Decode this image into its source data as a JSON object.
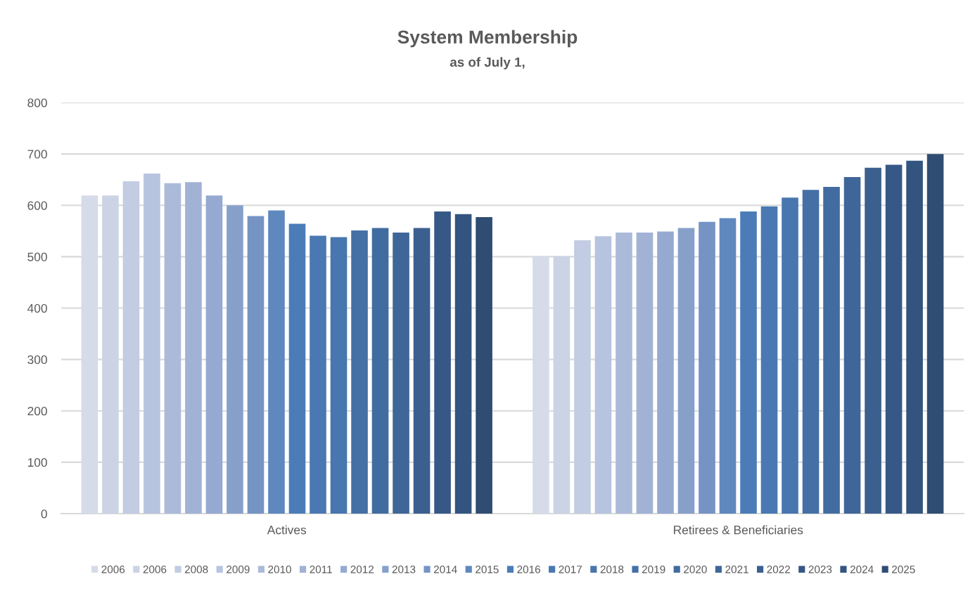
{
  "chart_data": {
    "type": "bar",
    "title": "System Membership",
    "subtitle": "as of July 1,",
    "categories": [
      "Actives",
      "Retirees & Beneficiaries"
    ],
    "series": [
      {
        "name": "2006",
        "color": "#d5dbe8",
        "values": [
          619,
          501
        ]
      },
      {
        "name": "2006",
        "color": "#cbd3e4",
        "values": [
          619,
          501
        ]
      },
      {
        "name": "2008",
        "color": "#c2cce2",
        "values": [
          647,
          532
        ]
      },
      {
        "name": "2009",
        "color": "#b7c4df",
        "values": [
          662,
          540
        ]
      },
      {
        "name": "2010",
        "color": "#abbad9",
        "values": [
          643,
          547
        ]
      },
      {
        "name": "2011",
        "color": "#a1b2d5",
        "values": [
          645,
          547
        ]
      },
      {
        "name": "2012",
        "color": "#95a9d1",
        "values": [
          619,
          549
        ]
      },
      {
        "name": "2013",
        "color": "#86a0ca",
        "values": [
          600,
          556
        ]
      },
      {
        "name": "2014",
        "color": "#7594c4",
        "values": [
          579,
          568
        ]
      },
      {
        "name": "2015",
        "color": "#5f88bf",
        "values": [
          590,
          575
        ]
      },
      {
        "name": "2016",
        "color": "#4b7cb8",
        "values": [
          564,
          588
        ]
      },
      {
        "name": "2017",
        "color": "#4a78b2",
        "values": [
          541,
          598
        ]
      },
      {
        "name": "2018",
        "color": "#4876ae",
        "values": [
          538,
          615
        ]
      },
      {
        "name": "2019",
        "color": "#4570a6",
        "values": [
          551,
          630
        ]
      },
      {
        "name": "2020",
        "color": "#416ca0",
        "values": [
          556,
          636
        ]
      },
      {
        "name": "2021",
        "color": "#3e6698",
        "values": [
          547,
          655
        ]
      },
      {
        "name": "2022",
        "color": "#3b5f8f",
        "values": [
          556,
          673
        ]
      },
      {
        "name": "2023",
        "color": "#365887",
        "values": [
          588,
          679
        ]
      },
      {
        "name": "2024",
        "color": "#33547f",
        "values": [
          583,
          687
        ]
      },
      {
        "name": "2025",
        "color": "#2f4d72",
        "values": [
          577,
          700
        ]
      }
    ],
    "ylim": [
      0,
      800
    ],
    "yticks": [
      0,
      100,
      200,
      300,
      400,
      500,
      600,
      700,
      800
    ],
    "grid": "y",
    "legend": "bottom"
  }
}
